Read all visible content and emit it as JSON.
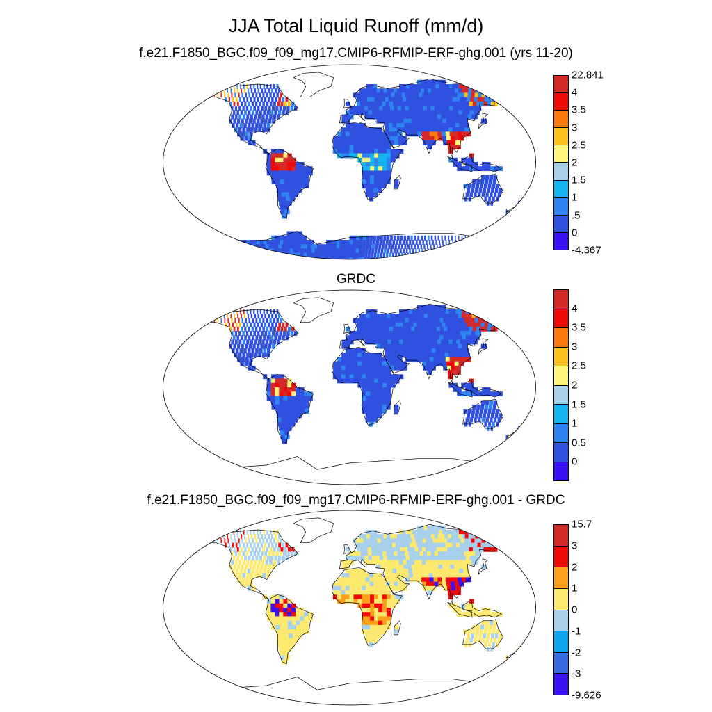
{
  "title": "JJA Total Liquid Runoff (mm/d)",
  "panels": [
    {
      "id": "model",
      "title": "f.e21.F1850_BGC.f09_f09_mg17.CMIP6-RFMIP-ERF-ghg.001 (yrs 11-20)",
      "colors": [
        "#3a10f5",
        "#3050e0",
        "#2e84f0",
        "#14b4f0",
        "#a6d0ec",
        "#fdf47a",
        "#fcc21c",
        "#fc7a0a",
        "#f00a0a",
        "#d42a2a"
      ],
      "labels": [
        "-4.367",
        "0",
        ".5",
        "1",
        "1.5",
        "2",
        "2.5",
        "3",
        "3.5",
        "4",
        "22.841"
      ],
      "labels_at_edges": true
    },
    {
      "id": "obs",
      "title": "GRDC",
      "colors": [
        "#3a10f5",
        "#3050e0",
        "#2e84f0",
        "#14b4f0",
        "#a6d0ec",
        "#fdf47a",
        "#fcc21c",
        "#fc7a0a",
        "#f00a0a",
        "#d42a2a"
      ],
      "labels": [
        "0",
        "0.5",
        "1",
        "1.5",
        "2",
        "2.5",
        "3",
        "3.5",
        "4"
      ],
      "labels_at_edges": false
    },
    {
      "id": "diff",
      "title": "f.e21.F1850_BGC.f09_f09_mg17.CMIP6-RFMIP-ERF-ghg.001 - GRDC",
      "colors": [
        "#3a10f5",
        "#3a6ae0",
        "#0ea6f0",
        "#a6d0ec",
        "#fde870",
        "#fca01c",
        "#f00a0a",
        "#d42a2a"
      ],
      "labels": [
        "-9.626",
        "-3",
        "-2",
        "-1",
        "0",
        "1",
        "2",
        "3",
        "15.7"
      ],
      "labels_at_edges": true
    }
  ]
}
